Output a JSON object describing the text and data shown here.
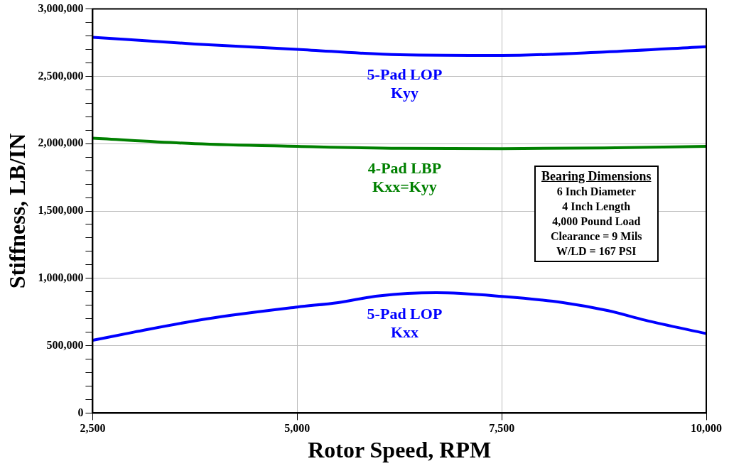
{
  "chart_data": {
    "type": "line",
    "xlabel": "Rotor Speed, RPM",
    "ylabel": "Stiffness, LB/IN",
    "xlim": [
      2500,
      10000
    ],
    "xticks": [
      {
        "value": 2500,
        "label": "2,500"
      },
      {
        "value": 5000,
        "label": "5,000"
      },
      {
        "value": 7500,
        "label": "7,500"
      },
      {
        "value": 10000,
        "label": "10,000"
      }
    ],
    "ylim": [
      0,
      3000000
    ],
    "yticks": [
      0,
      {
        "value": 100000,
        "label": null
      },
      {
        "value": 200000,
        "label": null
      },
      {
        "value": 300000,
        "label": null
      },
      {
        "value": 400000,
        "label": null
      },
      {
        "value": 500000,
        "label": "500,000"
      },
      {
        "value": 600000,
        "label": null
      },
      {
        "value": 700000,
        "label": null
      },
      {
        "value": 800000,
        "label": null
      },
      {
        "value": 900000,
        "label": null
      },
      {
        "value": 1000000,
        "label": "1,000,000"
      },
      {
        "value": 1100000,
        "label": null
      },
      {
        "value": 1200000,
        "label": null
      },
      {
        "value": 1300000,
        "label": null
      },
      {
        "value": 1400000,
        "label": null
      },
      {
        "value": 1500000,
        "label": "1,500,000"
      },
      {
        "value": 1600000,
        "label": null
      },
      {
        "value": 1700000,
        "label": null
      },
      {
        "value": 1800000,
        "label": null
      },
      {
        "value": 1900000,
        "label": null
      },
      {
        "value": 2000000,
        "label": "2,000,000"
      },
      {
        "value": 2100000,
        "label": null
      },
      {
        "value": 2200000,
        "label": null
      },
      {
        "value": 2300000,
        "label": null
      },
      {
        "value": 2400000,
        "label": null
      },
      {
        "value": 2500000,
        "label": "2,500,000"
      },
      {
        "value": 2600000,
        "label": null
      },
      {
        "value": 2700000,
        "label": null
      },
      {
        "value": 2800000,
        "label": null
      },
      {
        "value": 2900000,
        "label": null
      },
      {
        "value": 3000000,
        "label": "3,000,000"
      }
    ],
    "grid": true,
    "marker": "none",
    "line_style": "solid",
    "legend": false,
    "series": [
      {
        "name": "5-Pad LOP\nKyy",
        "color": "#0000ff",
        "x": [
          2500,
          3750,
          5000,
          6250,
          7500,
          8750,
          10000
        ],
        "values": [
          2790000,
          2740000,
          2700000,
          2660000,
          2655000,
          2680000,
          2720000
        ]
      },
      {
        "name": "4-Pad LBP\nKxx=Kyy",
        "color": "#008000",
        "x": [
          2500,
          3750,
          5000,
          6250,
          7500,
          8750,
          10000
        ],
        "values": [
          2040000,
          2000000,
          1980000,
          1965000,
          1963000,
          1968000,
          1980000
        ]
      },
      {
        "name": "5-Pad LOP\nKxx",
        "color": "#0000ff",
        "x": [
          2500,
          3000,
          3900,
          5000,
          5500,
          6000,
          6700,
          7500,
          8250,
          8800,
          9250,
          10000
        ],
        "values": [
          540000,
          600000,
          700000,
          787000,
          820000,
          870000,
          893000,
          866000,
          820000,
          760000,
          690000,
          590000
        ]
      }
    ],
    "annotations": [
      "Bearing Dimensions",
      "6 Inch Diameter",
      "4 Inch Length",
      "4,000 Pound Load",
      "Clearance = 9 Mils",
      "W/LD = 167 PSI"
    ]
  }
}
